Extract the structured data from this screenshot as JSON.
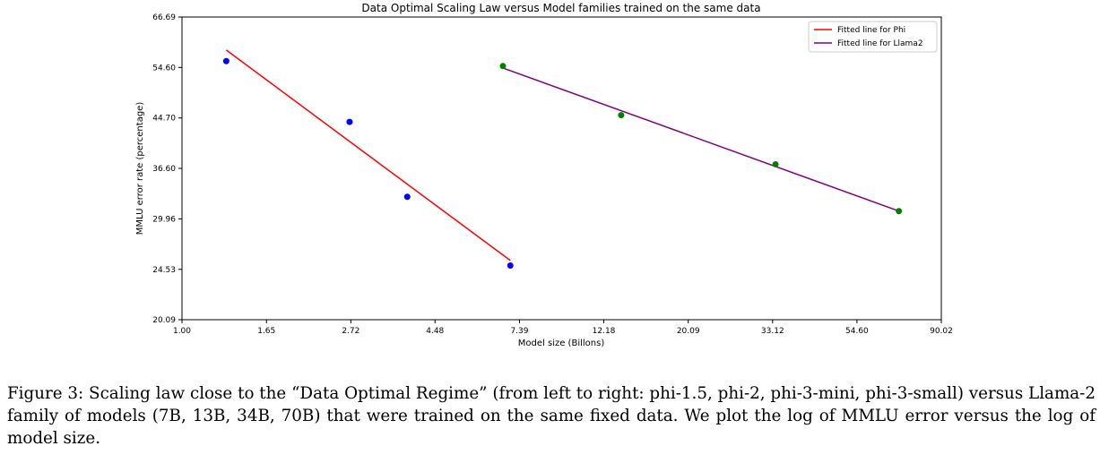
{
  "chart_data": {
    "type": "scatter",
    "title": "Data Optimal Scaling Law versus Model families trained on the same data",
    "xlabel": "Model size (Billons)",
    "ylabel": "MMLU error rate (percentage)",
    "xscale": "log",
    "yscale": "log",
    "xlim": [
      1.0,
      90.02
    ],
    "ylim": [
      20.09,
      66.69
    ],
    "x_ticks": [
      1.0,
      1.65,
      2.72,
      4.48,
      7.39,
      12.18,
      20.09,
      33.12,
      54.6,
      90.02
    ],
    "x_tick_labels": [
      "1.00",
      "1.65",
      "2.72",
      "4.48",
      "7.39",
      "12.18",
      "20.09",
      "33.12",
      "54.60",
      "90.02"
    ],
    "y_ticks": [
      20.09,
      24.53,
      29.96,
      36.6,
      44.7,
      54.6,
      66.69
    ],
    "y_tick_labels": [
      "20.09",
      "24.53",
      "29.96",
      "36.60",
      "44.70",
      "54.60",
      "66.69"
    ],
    "grid": false,
    "legend_position": "top-right",
    "series": [
      {
        "name": "Fitted line for Phi",
        "kind": "line",
        "color": "#ff0000",
        "x": [
          1.3,
          7.0
        ],
        "y": [
          58.5,
          25.4
        ]
      },
      {
        "name": "Fitted line for Llama2",
        "kind": "line",
        "color": "#800080",
        "x": [
          6.7,
          70.0
        ],
        "y": [
          54.5,
          30.9
        ]
      },
      {
        "kind": "points",
        "color": "#0000ff",
        "x": [
          1.3,
          2.7,
          3.8,
          7.0
        ],
        "y": [
          56.0,
          44.0,
          32.7,
          24.9
        ]
      },
      {
        "kind": "points",
        "color": "#008000",
        "x": [
          6.7,
          13.5,
          33.7,
          70.0
        ],
        "y": [
          54.9,
          45.2,
          37.2,
          30.9
        ]
      }
    ]
  },
  "caption": {
    "text": "Figure 3: Scaling law close to the “Data Optimal Regime” (from left to right: phi-1.5, phi-2, phi-3-mini, phi-3-small) versus Llama-2 family of models (7B, 13B, 34B, 70B) that were trained on the same fixed data. We plot the log of MMLU error versus the log of model size."
  }
}
